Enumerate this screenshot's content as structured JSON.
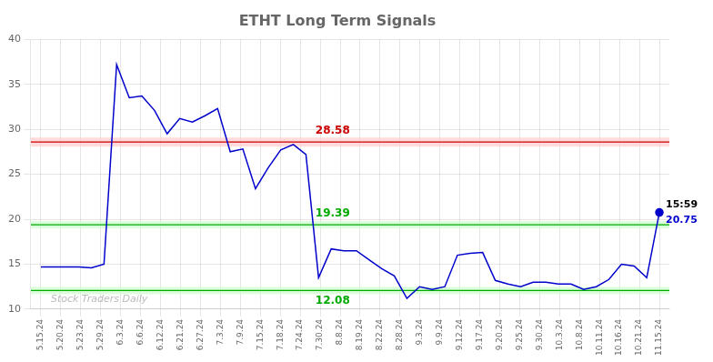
{
  "chart_data": {
    "type": "line",
    "title": "ETHT Long Term Signals",
    "series": [
      {
        "type": "line",
        "color": "#0000cc",
        "marker": "none",
        "x": [
          0,
          0.632653,
          1.265306,
          1.897959,
          2.530612,
          3.163265,
          3.795918,
          4.428571,
          5.061224,
          5.693878,
          6.326531,
          6.959184,
          7.591837,
          8.22449,
          8.857143,
          9.489796,
          10.122449,
          10.755102,
          11.387755,
          12.020408,
          12.653061,
          13.285714,
          13.918367,
          14.55102,
          15.183673,
          15.816327,
          16.44898,
          17.081633,
          17.714286,
          18.346939,
          18.979592,
          19.612245,
          20.244898,
          20.877551,
          21.510204,
          22.142857,
          22.77551,
          23.408163,
          24.040816,
          24.673469,
          25.306122,
          25.938776,
          26.571429,
          27.204082,
          27.836735,
          28.469388,
          29.102041,
          29.734694,
          30.367347,
          31
        ],
        "values": [
          14.7,
          14.7,
          14.7,
          14.7,
          14.6,
          15.0,
          37.2,
          33.5,
          33.7,
          32.1,
          29.5,
          31.2,
          30.8,
          31.5,
          32.3,
          27.5,
          27.8,
          23.4,
          25.7,
          27.7,
          28.3,
          27.2,
          13.5,
          16.7,
          16.5,
          16.5,
          15.5,
          14.5,
          13.7,
          11.2,
          12.5,
          12.2,
          12.5,
          16.0,
          16.2,
          16.3,
          13.2,
          12.8,
          12.5,
          13.0,
          13.0,
          12.8,
          12.8,
          12.2,
          12.5,
          13.3,
          15.0,
          14.8,
          13.5,
          20.75
        ]
      },
      {
        "type": "scatter",
        "color": "#0000cc",
        "marker": "circle",
        "x": [
          31
        ],
        "values": [
          20.75
        ]
      }
    ],
    "hlines": [
      {
        "y": 28.58,
        "color": "#cc0000",
        "band_color": "#ffcccc",
        "label": "28.58"
      },
      {
        "y": 19.39,
        "color": "#00aa00",
        "band_color": "#ccffcc",
        "label": "19.39"
      },
      {
        "y": 12.08,
        "color": "#00aa00",
        "band_color": "#ccffcc",
        "label": "12.08"
      }
    ],
    "annotations": [
      {
        "text": "15:59",
        "x": 31,
        "y": 20.75,
        "color": "#000000"
      },
      {
        "text": "20.75",
        "x": 31,
        "y": 20.75,
        "color": "#0000cc"
      },
      {
        "text": "Stock Traders Daily",
        "x": 0.5,
        "y": 10.5,
        "color": "#aaaaaa"
      }
    ],
    "xlim": [
      -0.5,
      31.5
    ],
    "xticks": [
      {
        "value": 0,
        "label": "5.15.24"
      },
      {
        "value": 1,
        "label": "5.20.24"
      },
      {
        "value": 2,
        "label": "5.23.24"
      },
      {
        "value": 3,
        "label": "5.29.24"
      },
      {
        "value": 4,
        "label": "6.3.24"
      },
      {
        "value": 5,
        "label": "6.6.24"
      },
      {
        "value": 6,
        "label": "6.12.24"
      },
      {
        "value": 7,
        "label": "6.21.24"
      },
      {
        "value": 8,
        "label": "6.27.24"
      },
      {
        "value": 9,
        "label": "7.3.24"
      },
      {
        "value": 10,
        "label": "7.9.24"
      },
      {
        "value": 11,
        "label": "7.15.24"
      },
      {
        "value": 12,
        "label": "7.18.24"
      },
      {
        "value": 13,
        "label": "7.24.24"
      },
      {
        "value": 14,
        "label": "7.30.24"
      },
      {
        "value": 15,
        "label": "8.8.24"
      },
      {
        "value": 16,
        "label": "8.19.24"
      },
      {
        "value": 17,
        "label": "8.22.24"
      },
      {
        "value": 18,
        "label": "8.28.24"
      },
      {
        "value": 19,
        "label": "9.3.24"
      },
      {
        "value": 20,
        "label": "9.9.24"
      },
      {
        "value": 21,
        "label": "9.12.24"
      },
      {
        "value": 22,
        "label": "9.17.24"
      },
      {
        "value": 23,
        "label": "9.20.24"
      },
      {
        "value": 24,
        "label": "9.25.24"
      },
      {
        "value": 25,
        "label": "9.30.24"
      },
      {
        "value": 26,
        "label": "10.3.24"
      },
      {
        "value": 27,
        "label": "10.8.24"
      },
      {
        "value": 28,
        "label": "10.11.24"
      },
      {
        "value": 29,
        "label": "10.16.24"
      },
      {
        "value": 30,
        "label": "10.21.24"
      },
      {
        "value": 31,
        "label": "11.15.24"
      }
    ],
    "ylim": [
      10,
      40
    ],
    "yticks": [
      10,
      15,
      20,
      25,
      30,
      35,
      40
    ],
    "grid": true
  }
}
